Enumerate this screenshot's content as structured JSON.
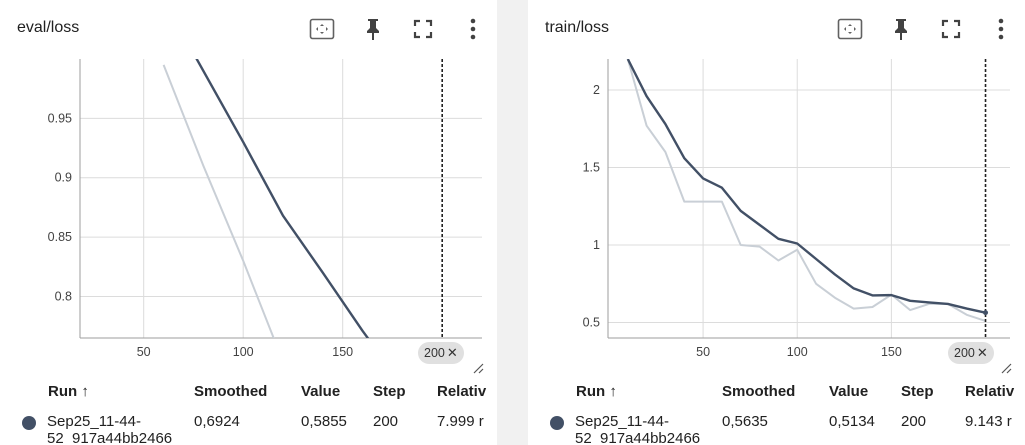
{
  "cards": [
    {
      "title": "eval/loss",
      "pinned_step": "200",
      "table": {
        "headers": [
          "Run ↑",
          "Smoothed",
          "Value",
          "Step",
          "Relativ"
        ],
        "row": {
          "run_line1": "Sep25_11-44-",
          "run_line2": "52_917a44bb2466",
          "smoothed": "0,6924",
          "value": "0,5855",
          "step": "200",
          "relative": "7.999 r"
        }
      }
    },
    {
      "title": "train/loss",
      "pinned_step": "200",
      "table": {
        "headers": [
          "Run ↑",
          "Smoothed",
          "Value",
          "Step",
          "Relativ"
        ],
        "row": {
          "run_line1": "Sep25_11-44-",
          "run_line2": "52_917a44bb2466",
          "smoothed": "0,5635",
          "value": "0,5134",
          "step": "200",
          "relative": "9.143 r"
        }
      }
    }
  ],
  "colors": {
    "smoothed": "#425066",
    "raw": "#c9cfd6",
    "grid": "#dcdcdc",
    "chip": "#e0e0e0"
  },
  "chart_data": [
    {
      "type": "line",
      "xlim": [
        18,
        220
      ],
      "ylim": [
        0.765,
        1.0
      ],
      "xticks": [
        50,
        100,
        150
      ],
      "yticks": [
        0.8,
        0.85,
        0.9,
        0.95
      ],
      "ytick_labels": [
        "0.8",
        "0.85",
        "0.9",
        "0.95"
      ],
      "pinned_x": 200,
      "series": [
        {
          "role": "raw",
          "x": [
            60,
            80,
            100,
            120
          ],
          "y": [
            0.995,
            0.91,
            0.83,
            0.745
          ]
        },
        {
          "role": "smoothed",
          "x": [
            75,
            100,
            120,
            140,
            160,
            180
          ],
          "y": [
            1.005,
            0.93,
            0.868,
            0.82,
            0.771,
            0.725
          ]
        }
      ]
    },
    {
      "type": "line",
      "xlim": [
        -0.5,
        213
      ],
      "ylim": [
        0.4,
        2.2
      ],
      "xticks": [
        50,
        100,
        150
      ],
      "yticks": [
        0.5,
        1,
        1.5,
        2
      ],
      "ytick_labels": [
        "0.5",
        "1",
        "1.5",
        "2"
      ],
      "pinned_x": 200,
      "series": [
        {
          "role": "raw",
          "x": [
            10,
            20,
            30,
            40,
            50,
            60,
            70,
            80,
            90,
            100,
            110,
            120,
            130,
            140,
            150,
            160,
            170,
            180,
            190,
            200
          ],
          "y": [
            2.2,
            1.77,
            1.6,
            1.28,
            1.28,
            1.28,
            1.0,
            0.99,
            0.9,
            0.97,
            0.75,
            0.66,
            0.59,
            0.6,
            0.68,
            0.58,
            0.62,
            0.62,
            0.55,
            0.51
          ]
        },
        {
          "role": "smoothed",
          "x": [
            10,
            20,
            30,
            40,
            50,
            60,
            70,
            80,
            90,
            100,
            110,
            120,
            130,
            140,
            150,
            160,
            170,
            180,
            190,
            200
          ],
          "y": [
            2.2,
            1.96,
            1.78,
            1.56,
            1.43,
            1.37,
            1.22,
            1.13,
            1.04,
            1.01,
            0.91,
            0.81,
            0.72,
            0.675,
            0.677,
            0.64,
            0.63,
            0.62,
            0.59,
            0.5635
          ]
        }
      ]
    }
  ]
}
